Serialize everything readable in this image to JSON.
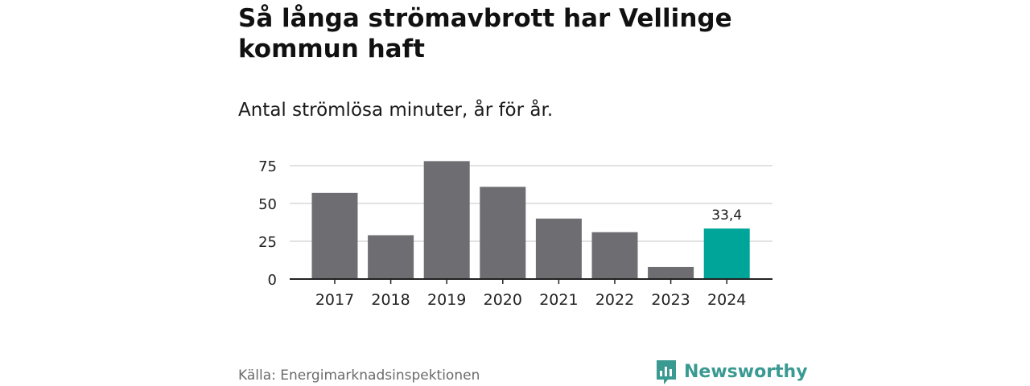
{
  "title": "Så långa strömavbrott har Vellinge kommun haft",
  "subtitle": "Antal strömlösa minuter, år för år.",
  "source": "Källa: Energimarknadsinspektionen",
  "brand": {
    "name": "Newsworthy",
    "icon": "bar-chart-speech-icon",
    "color": "#3a9a92"
  },
  "colors": {
    "bar": "#6e6d72",
    "highlight": "#00a59a",
    "grid": "#d9d9d9",
    "axis": "#222222"
  },
  "chart_data": {
    "type": "bar",
    "title": "Så långa strömavbrott har Vellinge kommun haft",
    "subtitle": "Antal strömlösa minuter, år för år.",
    "categories": [
      "2017",
      "2018",
      "2019",
      "2020",
      "2021",
      "2022",
      "2023",
      "2024"
    ],
    "values": [
      57,
      29,
      78,
      61,
      40,
      31,
      8,
      33.4
    ],
    "highlight_index": 7,
    "data_labels": [
      {
        "index": 7,
        "label": "33,4"
      }
    ],
    "yticks": [
      0,
      25,
      50,
      75
    ],
    "ytick_labels": [
      "0",
      "25",
      "50",
      "75"
    ],
    "ylim": [
      0,
      80
    ],
    "xlabel": "",
    "ylabel": "",
    "grid": true
  }
}
